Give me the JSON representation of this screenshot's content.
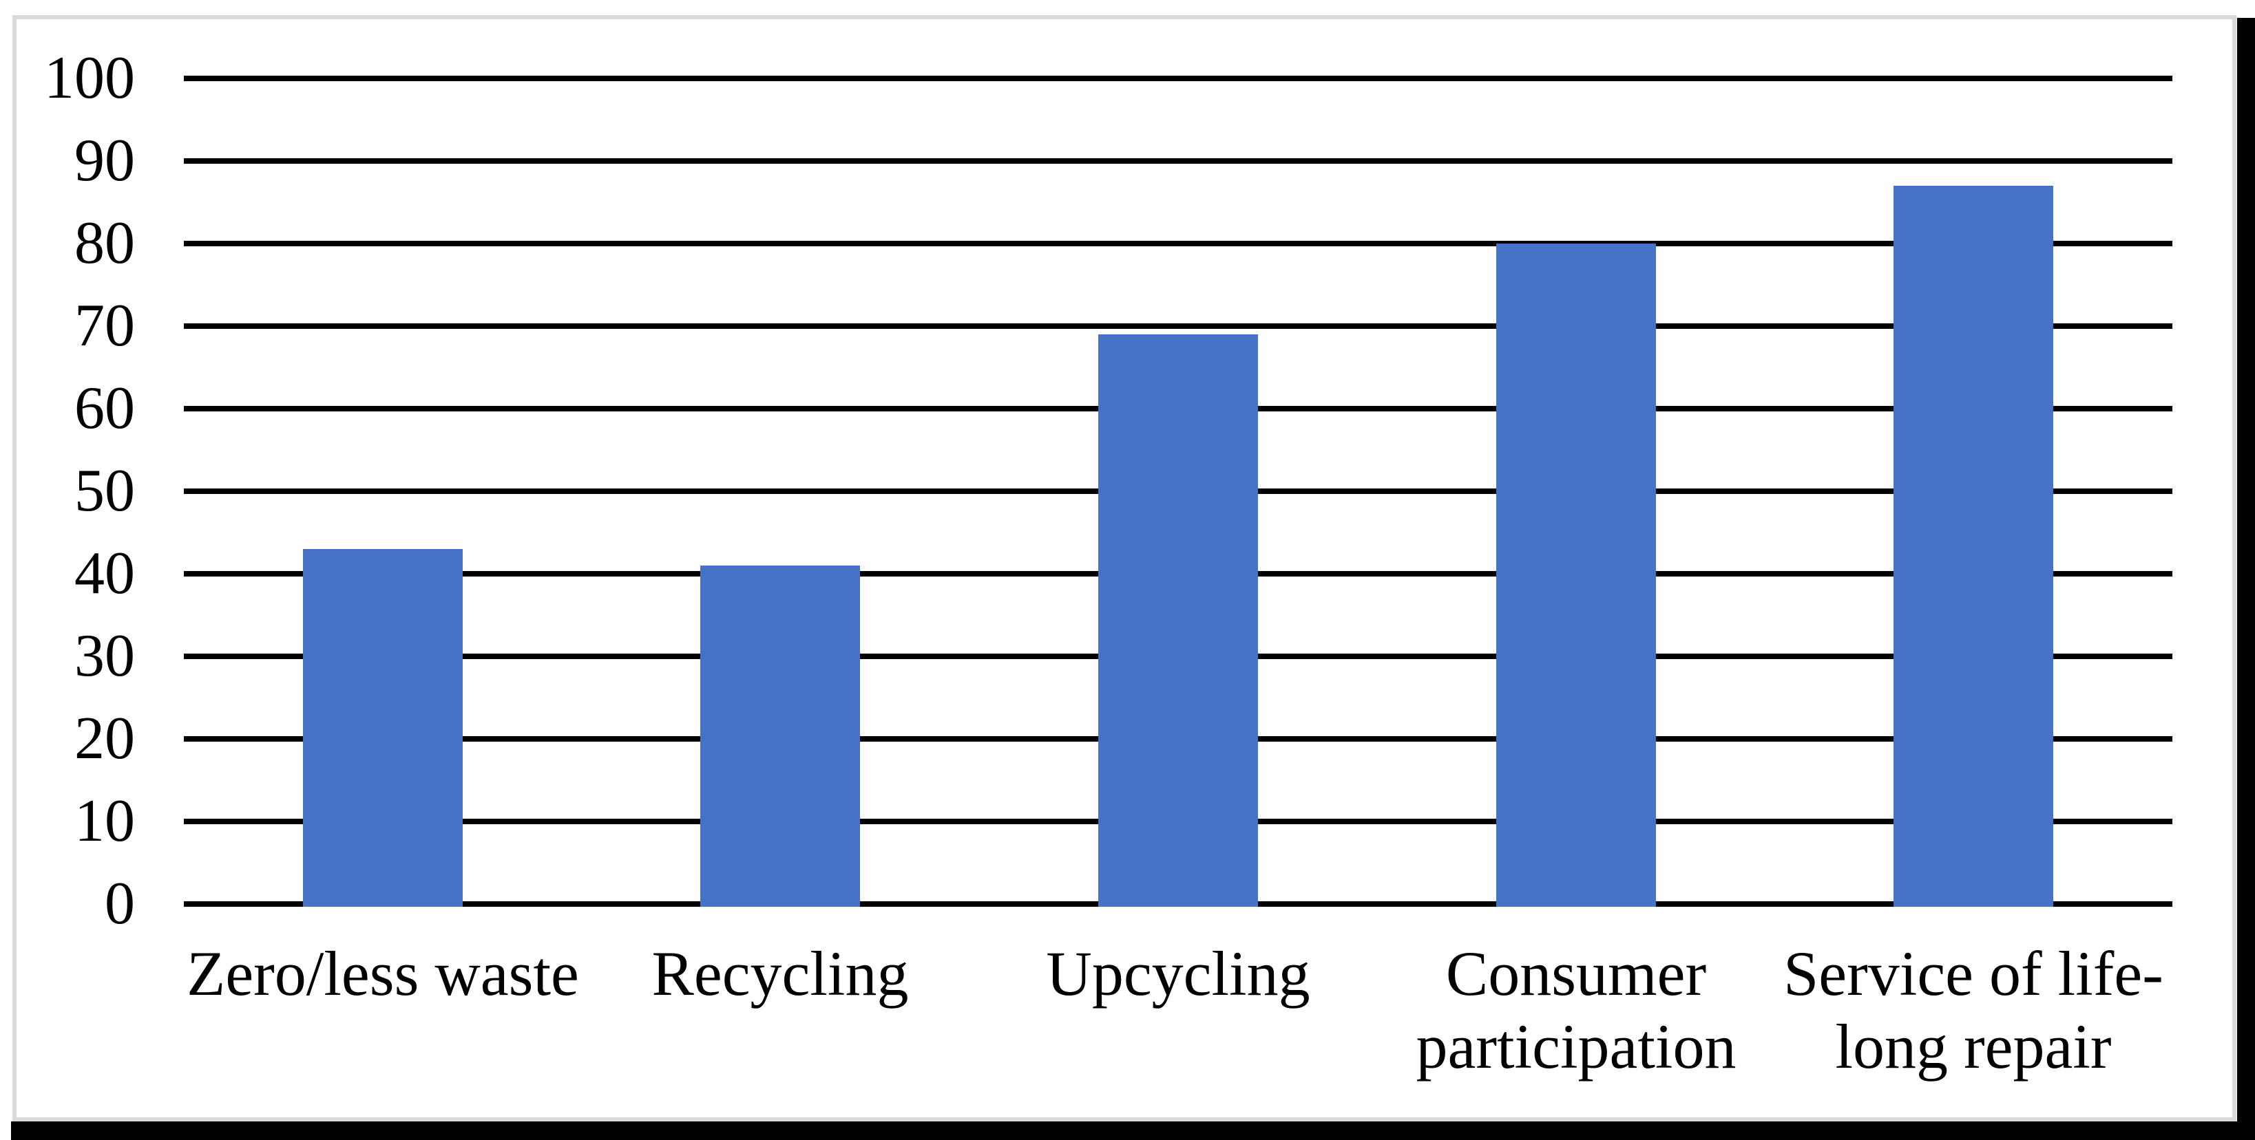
{
  "figure": {
    "background": "#FFFFFF",
    "frame_border_color": "#D9D9D9",
    "shadow_color": "#000000"
  },
  "chart_data": {
    "type": "bar",
    "title": "",
    "xlabel": "",
    "ylabel": "",
    "categories": [
      "Zero/less waste",
      "Recycling",
      "Upcycling",
      "Consumer participation",
      "Service of life-long repair"
    ],
    "values": [
      43,
      41,
      69,
      80,
      87
    ],
    "ylim": [
      0,
      100
    ],
    "yticks": [
      100,
      90,
      80,
      70,
      60,
      50,
      40,
      30,
      20,
      10,
      0
    ],
    "grid": "horizontal",
    "legend_position": "none",
    "bar_color": "#4473C8",
    "gridline_color": "#000000",
    "tick_label_color": "#000000"
  }
}
